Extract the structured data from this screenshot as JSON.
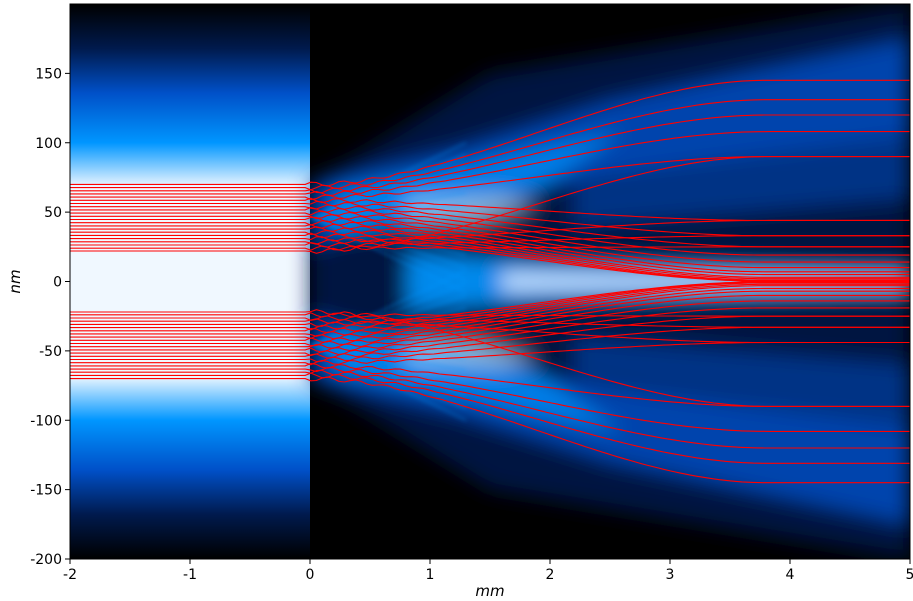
{
  "chart_data": {
    "type": "heatmap",
    "title": "",
    "xlabel": "mm",
    "ylabel": "nm",
    "xlim": [
      -2,
      5
    ],
    "ylim": [
      -200,
      200
    ],
    "x_ticks": [
      -2,
      -1,
      0,
      1,
      2,
      3,
      4,
      5
    ],
    "x_tick_labels": [
      "-2",
      "-1",
      "0",
      "1",
      "2",
      "3",
      "4",
      "5"
    ],
    "y_ticks": [
      -200,
      -150,
      -100,
      -50,
      0,
      50,
      100,
      150
    ],
    "y_tick_labels": [
      "-200",
      "-150",
      "-100",
      "-50",
      "0",
      "50",
      "100",
      "150"
    ],
    "grid": false,
    "colormap": [
      "#000000",
      "#001a4d",
      "#0050c8",
      "#0096ff",
      "#f0f8ff"
    ],
    "trajectory_color": "#ff0000",
    "slits": [
      {
        "y_center": 46,
        "half_width": 24
      },
      {
        "y_center": -46,
        "half_width": 24
      }
    ],
    "incident_beam_half_width": 110,
    "trajectories": {
      "count": 22,
      "x_start": -2,
      "x_end": 5,
      "start_y": [
        70,
        67.7,
        65.4,
        63.1,
        60.8,
        58.5,
        56.2,
        53.9,
        51.6,
        49.3,
        47,
        44.7,
        42.4,
        40.1,
        37.8,
        35.5,
        33.2,
        30.9,
        28.6,
        26.3,
        24,
        22
      ],
      "end_y": [
        145,
        131,
        120,
        108,
        90,
        44,
        33,
        25,
        19,
        14,
        10,
        7,
        5,
        3,
        2,
        1,
        0.5,
        0.2,
        44,
        33,
        25,
        90
      ]
    }
  }
}
